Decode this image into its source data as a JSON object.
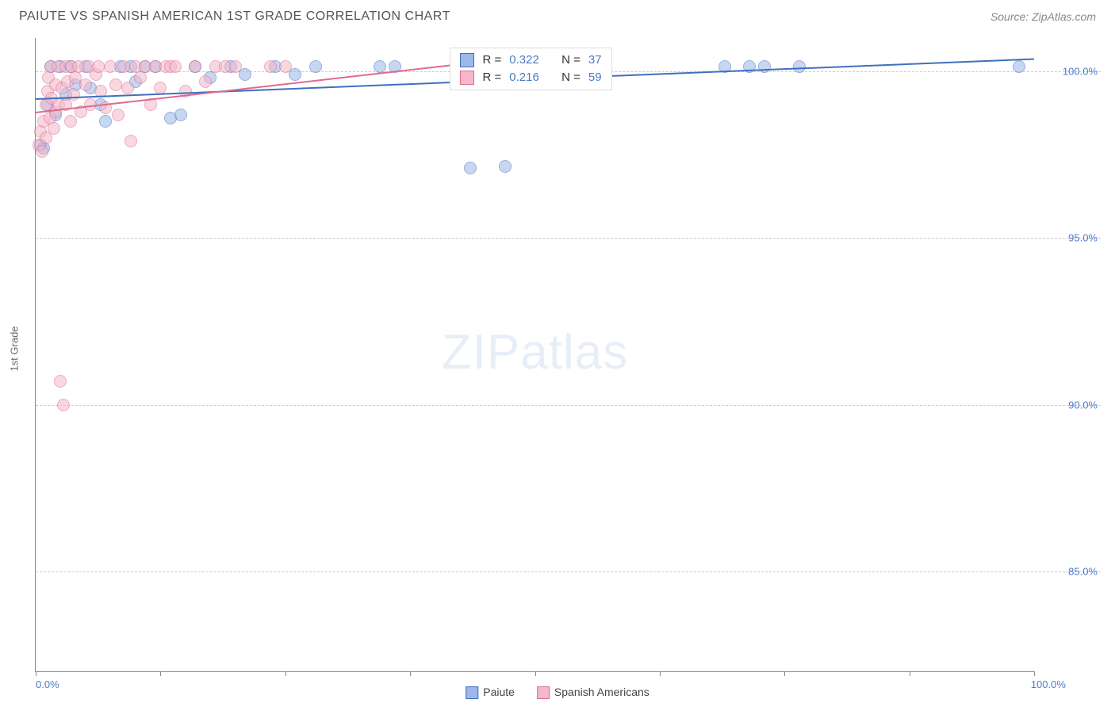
{
  "title": "PAIUTE VS SPANISH AMERICAN 1ST GRADE CORRELATION CHART",
  "source": "Source: ZipAtlas.com",
  "y_axis_label": "1st Grade",
  "watermark": {
    "bold": "ZIP",
    "light": "atlas"
  },
  "chart": {
    "type": "scatter",
    "background_color": "#ffffff",
    "grid_color": "#cccccc",
    "axis_color": "#888888",
    "xlim": [
      0,
      100
    ],
    "ylim": [
      82,
      101
    ],
    "y_ticks": [
      {
        "v": 100,
        "label": "100.0%"
      },
      {
        "v": 95,
        "label": "95.0%"
      },
      {
        "v": 90,
        "label": "90.0%"
      },
      {
        "v": 85,
        "label": "85.0%"
      }
    ],
    "x_ticks": [
      0,
      12.5,
      25,
      37.5,
      50,
      62.5,
      75,
      87.5,
      100
    ],
    "x_tick_labels": {
      "left": "0.0%",
      "right": "100.0%"
    },
    "marker_radius": 8,
    "marker_opacity": 0.55,
    "series": [
      {
        "name": "Paiute",
        "color_fill": "#9bb8e8",
        "color_stroke": "#3f6fbf",
        "trend": {
          "x1": 0,
          "y1": 99.2,
          "x2": 100,
          "y2": 100.4,
          "color": "#3f6fbf",
          "width": 2
        },
        "stats": {
          "R": "0.322",
          "N": "37"
        },
        "points": [
          [
            0.5,
            97.8
          ],
          [
            0.8,
            97.7
          ],
          [
            1.2,
            99.0
          ],
          [
            1.5,
            100.15
          ],
          [
            2.0,
            98.7
          ],
          [
            2.5,
            100.15
          ],
          [
            3.0,
            99.3
          ],
          [
            3.5,
            100.15
          ],
          [
            4.0,
            99.6
          ],
          [
            5.0,
            100.15
          ],
          [
            5.5,
            99.5
          ],
          [
            6.5,
            99.0
          ],
          [
            7.0,
            98.5
          ],
          [
            8.5,
            100.15
          ],
          [
            9.5,
            100.15
          ],
          [
            10.0,
            99.7
          ],
          [
            11.0,
            100.15
          ],
          [
            12.0,
            100.15
          ],
          [
            13.5,
            98.6
          ],
          [
            14.5,
            98.7
          ],
          [
            16.0,
            100.15
          ],
          [
            17.5,
            99.8
          ],
          [
            19.5,
            100.15
          ],
          [
            21.0,
            99.9
          ],
          [
            24.0,
            100.15
          ],
          [
            26.0,
            99.9
          ],
          [
            28.0,
            100.15
          ],
          [
            34.5,
            100.15
          ],
          [
            36.0,
            100.15
          ],
          [
            43.5,
            97.1
          ],
          [
            44.5,
            100.15
          ],
          [
            47.0,
            97.15
          ],
          [
            69.0,
            100.15
          ],
          [
            71.5,
            100.15
          ],
          [
            73.0,
            100.15
          ],
          [
            76.5,
            100.15
          ],
          [
            98.5,
            100.15
          ]
        ]
      },
      {
        "name": "Spanish Americans",
        "color_fill": "#f4b8ca",
        "color_stroke": "#e06a8e",
        "trend": {
          "x1": 0,
          "y1": 98.8,
          "x2": 44,
          "y2": 100.3,
          "color": "#e06a8e",
          "width": 2
        },
        "stats": {
          "R": "0.216",
          "N": "59"
        },
        "points": [
          [
            0.3,
            97.8
          ],
          [
            0.5,
            98.2
          ],
          [
            0.6,
            97.6
          ],
          [
            0.8,
            98.5
          ],
          [
            1.0,
            99.0
          ],
          [
            1.0,
            98.0
          ],
          [
            1.2,
            99.4
          ],
          [
            1.3,
            99.8
          ],
          [
            1.4,
            98.6
          ],
          [
            1.5,
            100.15
          ],
          [
            1.6,
            99.2
          ],
          [
            1.8,
            98.3
          ],
          [
            2.0,
            99.6
          ],
          [
            2.0,
            98.8
          ],
          [
            2.2,
            100.15
          ],
          [
            2.3,
            99.0
          ],
          [
            2.5,
            90.7
          ],
          [
            2.6,
            99.5
          ],
          [
            2.8,
            90.0
          ],
          [
            3.0,
            100.15
          ],
          [
            3.0,
            99.0
          ],
          [
            3.2,
            99.7
          ],
          [
            3.5,
            98.5
          ],
          [
            3.6,
            100.15
          ],
          [
            3.8,
            99.3
          ],
          [
            4.0,
            99.8
          ],
          [
            4.3,
            100.15
          ],
          [
            4.5,
            98.8
          ],
          [
            5.0,
            99.6
          ],
          [
            5.3,
            100.15
          ],
          [
            5.5,
            99.0
          ],
          [
            6.0,
            99.9
          ],
          [
            6.3,
            100.15
          ],
          [
            6.5,
            99.4
          ],
          [
            7.0,
            98.9
          ],
          [
            7.5,
            100.15
          ],
          [
            8.0,
            99.6
          ],
          [
            8.3,
            98.7
          ],
          [
            8.8,
            100.15
          ],
          [
            9.2,
            99.5
          ],
          [
            9.5,
            97.9
          ],
          [
            10.0,
            100.15
          ],
          [
            10.5,
            99.8
          ],
          [
            11.0,
            100.15
          ],
          [
            11.5,
            99.0
          ],
          [
            12.0,
            100.15
          ],
          [
            12.5,
            99.5
          ],
          [
            13.0,
            100.15
          ],
          [
            13.5,
            100.15
          ],
          [
            14.0,
            100.15
          ],
          [
            15.0,
            99.4
          ],
          [
            16.0,
            100.15
          ],
          [
            17.0,
            99.7
          ],
          [
            18.0,
            100.15
          ],
          [
            19.0,
            100.15
          ],
          [
            20.0,
            100.15
          ],
          [
            23.5,
            100.15
          ],
          [
            25.0,
            100.15
          ],
          [
            44.0,
            100.2
          ]
        ]
      }
    ],
    "stat_box": {
      "left_pct": 41.5,
      "top_pct": 1.5
    }
  },
  "bottom_legend": [
    {
      "label": "Paiute",
      "fill": "#9bb8e8",
      "stroke": "#3f6fbf"
    },
    {
      "label": "Spanish Americans",
      "fill": "#f4b8ca",
      "stroke": "#e06a8e"
    }
  ]
}
